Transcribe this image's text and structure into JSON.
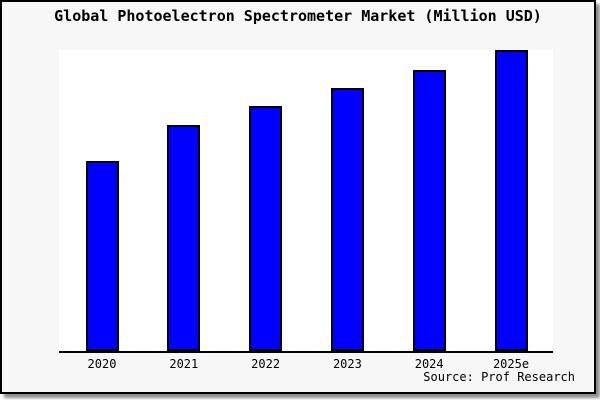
{
  "card": {
    "background": "#f7f7f7",
    "border_color": "#000000",
    "shadow_color": "#8e8e8e"
  },
  "title": "Global Photoelectron Spectrometer Market (Million USD)",
  "source": "Source: Prof Research",
  "chart_data": {
    "type": "bar",
    "title": "Global Photoelectron Spectrometer Market (Million USD)",
    "categories": [
      "2020",
      "2021",
      "2022",
      "2023",
      "2024",
      "2025e"
    ],
    "values": [
      63,
      75,
      81.5,
      87.5,
      93.5,
      100
    ],
    "unit": "Million USD",
    "xlabel": "",
    "ylabel": "",
    "ylim": [
      0,
      100
    ],
    "y_axis_shown": false,
    "grid": false,
    "legend": false,
    "bar_fill": "#0000ff",
    "bar_border": "#000000",
    "plot_background": "#ffffff",
    "source": "Source: Prof Research"
  }
}
